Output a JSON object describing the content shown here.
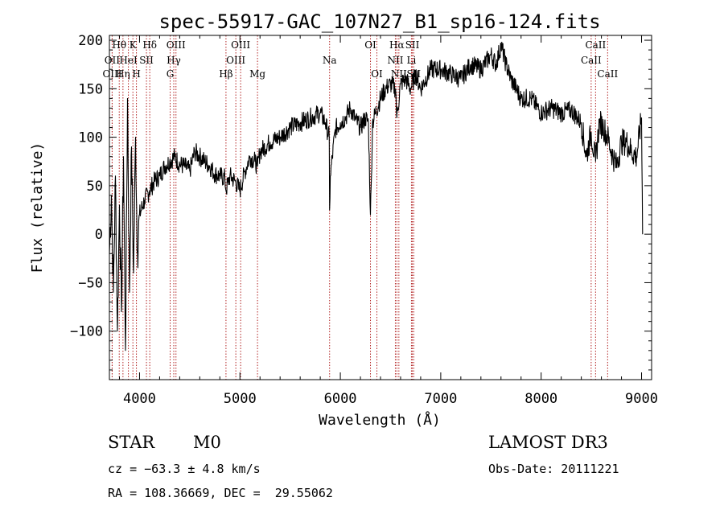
{
  "chart_data": {
    "type": "line",
    "title": "spec-55917-GAC_107N27_B1_sp16-124.fits",
    "xlabel": "Wavelength (Å)",
    "ylabel": "Flux (relative)",
    "xlim": [
      3700,
      9100
    ],
    "ylim": [
      -150,
      205
    ],
    "x_ticks": [
      4000,
      5000,
      6000,
      7000,
      8000,
      9000
    ],
    "y_ticks": [
      -100,
      -50,
      0,
      50,
      100,
      150,
      200
    ],
    "grid": false,
    "series": [
      {
        "name": "flux",
        "x": [
          3700,
          3720,
          3740,
          3760,
          3780,
          3800,
          3820,
          3840,
          3860,
          3880,
          3900,
          3920,
          3940,
          3960,
          3980,
          4000,
          4050,
          4100,
          4150,
          4200,
          4250,
          4300,
          4350,
          4400,
          4450,
          4500,
          4550,
          4600,
          4650,
          4700,
          4750,
          4800,
          4850,
          4861,
          4900,
          4950,
          5000,
          5050,
          5100,
          5150,
          5175,
          5200,
          5300,
          5400,
          5500,
          5600,
          5700,
          5800,
          5850,
          5890,
          5893,
          5900,
          5950,
          6000,
          6050,
          6100,
          6150,
          6200,
          6250,
          6280,
          6300,
          6310,
          6320,
          6350,
          6400,
          6450,
          6500,
          6550,
          6563,
          6600,
          6650,
          6700,
          6750,
          6800,
          6900,
          7000,
          7100,
          7200,
          7300,
          7400,
          7500,
          7550,
          7600,
          7650,
          7700,
          7800,
          7900,
          8000,
          8100,
          8200,
          8300,
          8400,
          8450,
          8498,
          8542,
          8580,
          8620,
          8662,
          8700,
          8750,
          8800,
          8850,
          8900,
          8950,
          9000,
          9010
        ],
        "values": [
          -20,
          40,
          -60,
          60,
          -100,
          30,
          -80,
          80,
          -120,
          140,
          -60,
          90,
          -40,
          100,
          -20,
          20,
          35,
          45,
          55,
          60,
          70,
          75,
          80,
          72,
          70,
          65,
          85,
          80,
          75,
          70,
          62,
          60,
          58,
          45,
          60,
          55,
          45,
          65,
          80,
          75,
          70,
          85,
          95,
          100,
          110,
          115,
          120,
          125,
          115,
          100,
          25,
          60,
          108,
          115,
          120,
          130,
          118,
          110,
          120,
          115,
          20,
          60,
          115,
          125,
          140,
          150,
          155,
          150,
          120,
          155,
          160,
          150,
          165,
          150,
          170,
          170,
          165,
          160,
          175,
          170,
          185,
          175,
          195,
          175,
          160,
          140,
          140,
          125,
          130,
          125,
          128,
          115,
          80,
          105,
          75,
          115,
          110,
          100,
          85,
          70,
          95,
          95,
          85,
          80,
          120,
          0
        ]
      }
    ],
    "line_markers": [
      {
        "label": "Hθ",
        "wave": 3798,
        "row": 0
      },
      {
        "label": "OII",
        "wave": 3727,
        "row": 1
      },
      {
        "label": "OIII",
        "wave": 3728,
        "row": 2
      },
      {
        "label": "K",
        "wave": 3934,
        "row": 0
      },
      {
        "label": "HeI",
        "wave": 3889,
        "row": 1
      },
      {
        "label": "Hη",
        "wave": 3835,
        "row": 2
      },
      {
        "label": "Hδ",
        "wave": 4102,
        "row": 0
      },
      {
        "label": "SII",
        "wave": 4069,
        "row": 1
      },
      {
        "label": "H",
        "wave": 3969,
        "row": 2
      },
      {
        "label": "OIII",
        "wave": 4363,
        "row": 0
      },
      {
        "label": "Hγ",
        "wave": 4341,
        "row": 1
      },
      {
        "label": "G",
        "wave": 4305,
        "row": 2
      },
      {
        "label": "OIII",
        "wave": 5007,
        "row": 0
      },
      {
        "label": "OIII",
        "wave": 4959,
        "row": 1
      },
      {
        "label": "Hβ",
        "wave": 4861,
        "row": 2
      },
      {
        "label": "Mg",
        "wave": 5175,
        "row": 2
      },
      {
        "label": "Na",
        "wave": 5893,
        "row": 1
      },
      {
        "label": "OI",
        "wave": 6300,
        "row": 0
      },
      {
        "label": "OI",
        "wave": 6364,
        "row": 2
      },
      {
        "label": "Hα",
        "wave": 6563,
        "row": 0
      },
      {
        "label": "NII",
        "wave": 6548,
        "row": 1
      },
      {
        "label": "NII",
        "wave": 6583,
        "row": 2
      },
      {
        "label": "SII",
        "wave": 6717,
        "row": 0
      },
      {
        "label": "Li",
        "wave": 6708,
        "row": 1
      },
      {
        "label": "SII",
        "wave": 6731,
        "row": 2
      },
      {
        "label": "CaII",
        "wave": 8542,
        "row": 0
      },
      {
        "label": "CaII",
        "wave": 8498,
        "row": 1
      },
      {
        "label": "CaII",
        "wave": 8662,
        "row": 2
      }
    ],
    "marker_color": "#b22222",
    "line_color": "#000000"
  },
  "info": {
    "object_class": "STAR",
    "subclass": "M0",
    "survey": "LAMOST DR3",
    "cz": "cz = −63.3 ± 4.8 km/s",
    "obs_date": "Obs-Date: 20111221",
    "coords": "RA = 108.36669, DEC =  29.55062"
  }
}
